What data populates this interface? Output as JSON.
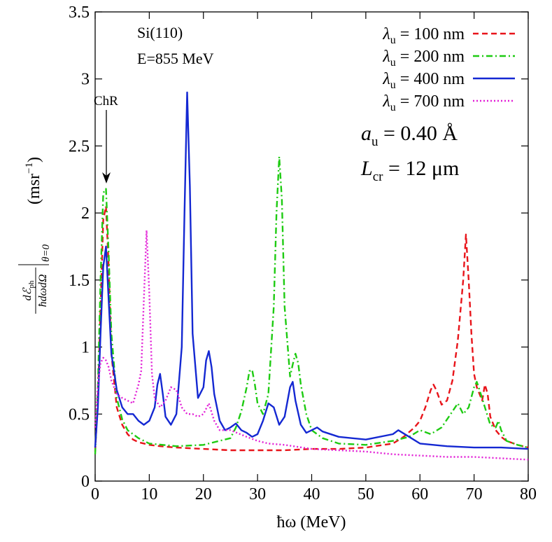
{
  "chart_data": {
    "type": "line",
    "xlabel": "ħω (MeV)",
    "ylabel_text": {
      "numerator": "dℰ",
      "numerator_sub": "ph",
      "denominator": "ħdωdΩ",
      "eval_sub": "θ=0",
      "unit": "(msr",
      "unit_sup": "−1",
      "unit_close": ")"
    },
    "xlim": [
      0,
      80
    ],
    "ylim": [
      0,
      3.5
    ],
    "xticks": [
      "0",
      "10",
      "20",
      "30",
      "40",
      "50",
      "60",
      "70",
      "80"
    ],
    "yticks": [
      "0",
      "0.5",
      "1",
      "1.5",
      "2",
      "2.5",
      "3",
      "3.5"
    ],
    "legend_position": "top-right",
    "grid": false,
    "annotations": {
      "material": "Si(110)",
      "energy": "E=855 MeV",
      "arrow_label": "ChR",
      "amplitude": {
        "sym": "a",
        "sub": "u",
        "rest": " = 0.40 Å"
      },
      "length": {
        "sym": "L",
        "sub": "cr",
        "rest": " = 12 μm"
      }
    },
    "series": [
      {
        "name": "λu = 100 nm",
        "label": {
          "sym": "λ",
          "sub": "u",
          "rest": " = 100 nm"
        },
        "color": "#e8141a",
        "dash": "8,5",
        "x": [
          0,
          0.5,
          1,
          1.5,
          2,
          2.5,
          3,
          4,
          5,
          6,
          7,
          8,
          10,
          12,
          15,
          20,
          25,
          30,
          35,
          40,
          45,
          50,
          55,
          57,
          59,
          60,
          61,
          62,
          62.5,
          63,
          64,
          65,
          66,
          67,
          68,
          68.5,
          69,
          69.5,
          70,
          70.5,
          71,
          71.5,
          72,
          72.5,
          73,
          74,
          75,
          76,
          78,
          80
        ],
        "y": [
          0.22,
          0.6,
          1.3,
          1.95,
          2.05,
          1.6,
          0.95,
          0.55,
          0.42,
          0.35,
          0.31,
          0.29,
          0.27,
          0.26,
          0.25,
          0.24,
          0.23,
          0.23,
          0.23,
          0.24,
          0.24,
          0.25,
          0.28,
          0.33,
          0.4,
          0.45,
          0.55,
          0.68,
          0.72,
          0.68,
          0.57,
          0.6,
          0.75,
          1.05,
          1.5,
          1.84,
          1.5,
          1.1,
          0.8,
          0.7,
          0.65,
          0.6,
          0.72,
          0.65,
          0.48,
          0.38,
          0.33,
          0.3,
          0.27,
          0.25
        ]
      },
      {
        "name": "λu = 200 nm",
        "label": {
          "sym": "λ",
          "sub": "u",
          "rest": " = 200 nm"
        },
        "color": "#1ecb12",
        "dash": "9,4,2,4",
        "x": [
          0,
          0.5,
          1,
          1.5,
          2,
          2.5,
          3,
          4,
          5,
          6,
          8,
          10,
          15,
          20,
          25,
          26,
          27,
          28,
          28.5,
          29,
          29.5,
          30,
          31,
          32,
          33,
          33.5,
          34,
          34.5,
          35,
          36,
          36.5,
          37,
          37.5,
          38,
          39,
          40,
          42,
          45,
          50,
          55,
          58,
          60,
          62,
          64,
          66,
          67,
          68,
          69,
          70,
          70.5,
          71,
          72,
          73,
          74,
          74.5,
          75,
          76,
          78,
          80
        ],
        "y": [
          0.2,
          0.7,
          1.5,
          2.15,
          2.18,
          1.7,
          1.1,
          0.62,
          0.46,
          0.38,
          0.32,
          0.28,
          0.26,
          0.27,
          0.32,
          0.4,
          0.52,
          0.7,
          0.82,
          0.83,
          0.72,
          0.58,
          0.5,
          0.65,
          1.3,
          2.0,
          2.42,
          2.1,
          1.3,
          0.78,
          0.87,
          0.95,
          0.88,
          0.72,
          0.5,
          0.38,
          0.32,
          0.28,
          0.27,
          0.3,
          0.33,
          0.38,
          0.35,
          0.4,
          0.52,
          0.58,
          0.5,
          0.55,
          0.7,
          0.74,
          0.68,
          0.55,
          0.42,
          0.4,
          0.45,
          0.38,
          0.3,
          0.27,
          0.25
        ]
      },
      {
        "name": "λu = 400 nm",
        "label": {
          "sym": "λ",
          "sub": "u",
          "rest": " = 400 nm"
        },
        "color": "#1428d2",
        "dash": "",
        "x": [
          0,
          0.5,
          1,
          1.5,
          2,
          2.5,
          3,
          4,
          5,
          6,
          7,
          8,
          9,
          10,
          11,
          11.5,
          12,
          12.5,
          13,
          14,
          15,
          16,
          16.5,
          17,
          17.5,
          18,
          19,
          20,
          20.5,
          21,
          21.5,
          22,
          23,
          24,
          25,
          26,
          27,
          28,
          29,
          30,
          31,
          32,
          33,
          34,
          35,
          36,
          36.5,
          37,
          38,
          39,
          40,
          41,
          42,
          45,
          50,
          55,
          56,
          58,
          60,
          65,
          70,
          75,
          80
        ],
        "y": [
          0.25,
          0.55,
          1.1,
          1.6,
          1.75,
          1.35,
          0.95,
          0.68,
          0.55,
          0.5,
          0.5,
          0.45,
          0.42,
          0.45,
          0.55,
          0.72,
          0.8,
          0.65,
          0.48,
          0.42,
          0.5,
          1.0,
          2.0,
          2.9,
          2.2,
          1.1,
          0.62,
          0.7,
          0.9,
          0.97,
          0.85,
          0.65,
          0.45,
          0.38,
          0.4,
          0.43,
          0.38,
          0.36,
          0.33,
          0.35,
          0.45,
          0.58,
          0.55,
          0.42,
          0.48,
          0.7,
          0.74,
          0.6,
          0.42,
          0.36,
          0.38,
          0.4,
          0.37,
          0.33,
          0.31,
          0.35,
          0.38,
          0.33,
          0.28,
          0.26,
          0.25,
          0.25,
          0.24
        ]
      },
      {
        "name": "λu = 700 nm",
        "label": {
          "sym": "λ",
          "sub": "u",
          "rest": " = 700 nm"
        },
        "color": "#e21ed6",
        "dash": "2,3",
        "x": [
          0,
          0.5,
          1,
          1.5,
          2,
          2.5,
          3,
          4,
          5,
          6,
          7,
          8,
          8.5,
          9,
          9.5,
          10,
          10.5,
          11,
          12,
          13,
          14,
          15,
          16,
          17,
          18,
          19,
          20,
          21,
          22,
          23,
          25,
          28,
          30,
          32,
          35,
          40,
          45,
          50,
          55,
          60,
          65,
          70,
          75,
          80
        ],
        "y": [
          0.4,
          0.72,
          0.88,
          0.92,
          0.9,
          0.85,
          0.75,
          0.65,
          0.62,
          0.6,
          0.58,
          0.72,
          0.82,
          1.35,
          1.87,
          1.4,
          0.8,
          0.62,
          0.55,
          0.6,
          0.7,
          0.68,
          0.55,
          0.5,
          0.5,
          0.48,
          0.5,
          0.58,
          0.45,
          0.38,
          0.38,
          0.33,
          0.3,
          0.28,
          0.27,
          0.24,
          0.23,
          0.22,
          0.2,
          0.19,
          0.18,
          0.18,
          0.17,
          0.16
        ]
      }
    ]
  }
}
